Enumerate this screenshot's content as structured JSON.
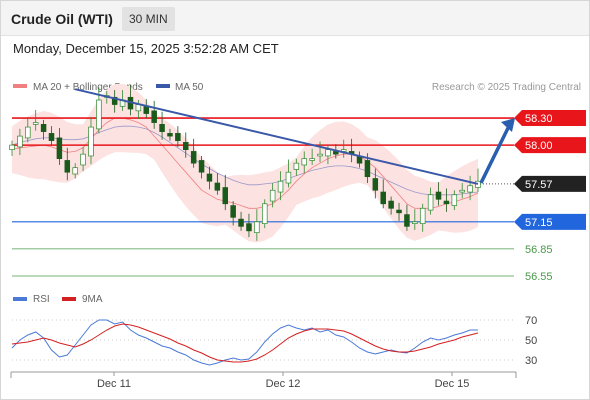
{
  "header": {
    "title": "Crude Oil (WTI)",
    "timeframe_button": "30 MIN"
  },
  "datetime": "Monday, December 15, 2025 3:52:28 AM CET",
  "legend": {
    "ma20_bb": "MA 20 + Bollinger Bands",
    "ma50": "MA 50"
  },
  "copyright": "Research © 2025 Trading Central",
  "rsi_legend": {
    "rsi": "RSI",
    "ma9": "9MA"
  },
  "colors": {
    "resistance": "#e8151b",
    "support": "#2266dd",
    "minor_support": "#4a9a4a",
    "trendline": "#3a58a8",
    "ma20": "#f08080",
    "bollinger_fill": "#fde2e2",
    "ma50": "#9a9ac8",
    "candle_up": "#2d8a2d",
    "candle_down": "#1a5a1a",
    "last_price_tag": "#222222",
    "rsi": "#4a7ad8",
    "rsi_ma": "#d42020",
    "arrow": "#2a5fb0"
  },
  "chart_data": [
    {
      "type": "candlestick",
      "instrument": "Crude Oil (WTI)",
      "interval": "30 MIN",
      "ylim": [
        56.45,
        58.5
      ],
      "x_ticks": [
        "Dec 11",
        "Dec 12",
        "Dec 15"
      ],
      "last_price": 57.57,
      "levels": [
        {
          "label": "58.30",
          "value": 58.3,
          "role": "resistance"
        },
        {
          "label": "58.00",
          "value": 58.0,
          "role": "resistance"
        },
        {
          "label": "57.57",
          "value": 57.57,
          "role": "last"
        },
        {
          "label": "57.15",
          "value": 57.15,
          "role": "support"
        },
        {
          "label": "56.85",
          "value": 56.85,
          "role": "support"
        },
        {
          "label": "56.55",
          "value": 56.55,
          "role": "support"
        }
      ],
      "close_series": [
        58.0,
        58.1,
        58.2,
        58.25,
        58.15,
        58.05,
        57.85,
        57.7,
        57.75,
        57.9,
        58.2,
        58.5,
        58.55,
        58.45,
        58.5,
        58.4,
        58.45,
        58.35,
        58.25,
        58.15,
        58.1,
        58.05,
        57.95,
        57.8,
        57.7,
        57.6,
        57.5,
        57.35,
        57.2,
        57.1,
        57.05,
        57.15,
        57.35,
        57.5,
        57.6,
        57.7,
        57.8,
        57.85,
        57.85,
        57.9,
        57.95,
        57.9,
        57.95,
        57.9,
        57.8,
        57.65,
        57.5,
        57.35,
        57.3,
        57.25,
        57.1,
        57.15,
        57.3,
        57.45,
        57.4,
        57.35,
        57.45,
        57.5,
        57.55,
        57.6
      ],
      "trendline": [
        58.62,
        57.57
      ],
      "projection": [
        57.57,
        58.3
      ],
      "series": [
        {
          "name": "MA 20 + Bollinger Bands",
          "values": [
            57.95,
            57.97,
            57.98,
            57.99,
            58.0,
            57.98,
            57.95,
            57.92,
            57.93,
            57.97,
            58.07,
            58.17,
            58.25,
            58.3,
            58.3,
            58.28,
            58.25,
            58.2,
            58.1,
            58.0,
            57.9,
            57.8,
            57.7,
            57.6,
            57.5,
            57.45,
            57.4,
            57.38,
            57.36,
            57.33,
            57.3,
            57.3,
            57.32,
            57.35,
            57.42,
            57.5,
            57.6,
            57.68,
            57.75,
            57.8,
            57.85,
            57.88,
            57.9,
            57.9,
            57.88,
            57.82,
            57.75,
            57.65,
            57.55,
            57.45,
            57.35,
            57.3,
            57.3,
            57.3,
            57.32,
            57.35,
            57.37,
            57.4,
            57.43,
            57.47
          ]
        },
        {
          "name": "MA 50",
          "values": [
            58.0,
            58.03,
            58.05,
            58.07,
            58.08,
            58.08,
            58.07,
            58.06,
            58.06,
            58.07,
            58.1,
            58.14,
            58.17,
            58.2,
            58.21,
            58.21,
            58.2,
            58.18,
            58.14,
            58.09,
            58.03,
            57.97,
            57.91,
            57.85,
            57.79,
            57.74,
            57.69,
            57.65,
            57.61,
            57.58,
            57.56,
            57.56,
            57.57,
            57.58,
            57.6,
            57.63,
            57.66,
            57.69,
            57.72,
            57.74,
            57.76,
            57.77,
            57.77,
            57.76,
            57.74,
            57.71,
            57.67,
            57.63,
            57.59,
            57.55,
            57.51,
            57.48,
            57.46,
            57.45,
            57.45,
            57.45,
            57.45,
            57.46,
            57.47,
            57.48
          ]
        }
      ]
    },
    {
      "type": "line",
      "name": "RSI",
      "y_ticks": [
        70,
        50,
        30
      ],
      "ylim": [
        20,
        78
      ],
      "series": [
        {
          "name": "RSI",
          "values": [
            42,
            50,
            55,
            58,
            52,
            40,
            33,
            35,
            45,
            55,
            65,
            70,
            70,
            66,
            68,
            60,
            55,
            52,
            48,
            44,
            42,
            38,
            35,
            30,
            27,
            25,
            27,
            30,
            32,
            30,
            31,
            38,
            48,
            56,
            62,
            65,
            62,
            60,
            62,
            58,
            60,
            55,
            53,
            48,
            42,
            38,
            36,
            38,
            40,
            38,
            37,
            42,
            48,
            52,
            50,
            52,
            55,
            57,
            60,
            60
          ]
        },
        {
          "name": "9MA",
          "values": [
            46,
            47,
            48,
            50,
            52,
            50,
            47,
            45,
            43,
            46,
            50,
            55,
            60,
            64,
            66,
            65,
            63,
            60,
            57,
            54,
            51,
            47,
            44,
            40,
            37,
            33,
            30,
            29,
            28,
            28,
            29,
            31,
            35,
            40,
            46,
            52,
            56,
            59,
            61,
            61,
            61,
            60,
            59,
            56,
            52,
            48,
            44,
            41,
            39,
            38,
            38,
            39,
            41,
            43,
            46,
            48,
            50,
            53,
            55,
            57
          ]
        }
      ]
    }
  ]
}
